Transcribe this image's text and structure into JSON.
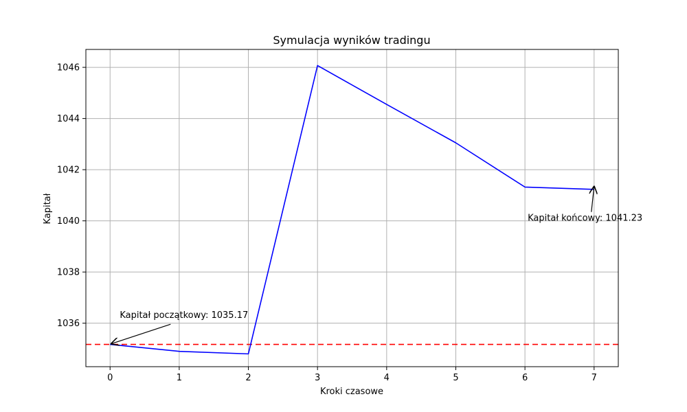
{
  "chart_data": {
    "type": "line",
    "title": "Symulacja wyników tradingu",
    "xlabel": "Kroki czasowe",
    "ylabel": "Kapitał",
    "x": [
      0,
      1,
      2,
      3,
      4,
      5,
      6,
      7
    ],
    "series": [
      {
        "values": [
          1035.17,
          1034.9,
          1034.8,
          1046.07,
          1044.55,
          1043.05,
          1041.32,
          1041.23
        ],
        "color": "#0000ff"
      }
    ],
    "reference_line": {
      "y": 1035.17,
      "color": "#ff0000",
      "style": "dashed"
    },
    "xlim": [
      -0.35,
      7.35
    ],
    "ylim": [
      1034.3,
      1046.7
    ],
    "xticks": [
      0,
      1,
      2,
      3,
      4,
      5,
      6,
      7
    ],
    "yticks": [
      1036,
      1038,
      1040,
      1042,
      1044,
      1046
    ],
    "grid": true,
    "annotations": [
      {
        "text": "Kapitał początkowy: 1035.17",
        "point": [
          0,
          1035.17
        ],
        "text_pos": [
          0.14,
          1036.2
        ]
      },
      {
        "text": "Kapitał końcowy: 1041.23",
        "point": [
          7,
          1041.23
        ],
        "text_pos": [
          6.04,
          1040.0
        ]
      }
    ]
  }
}
